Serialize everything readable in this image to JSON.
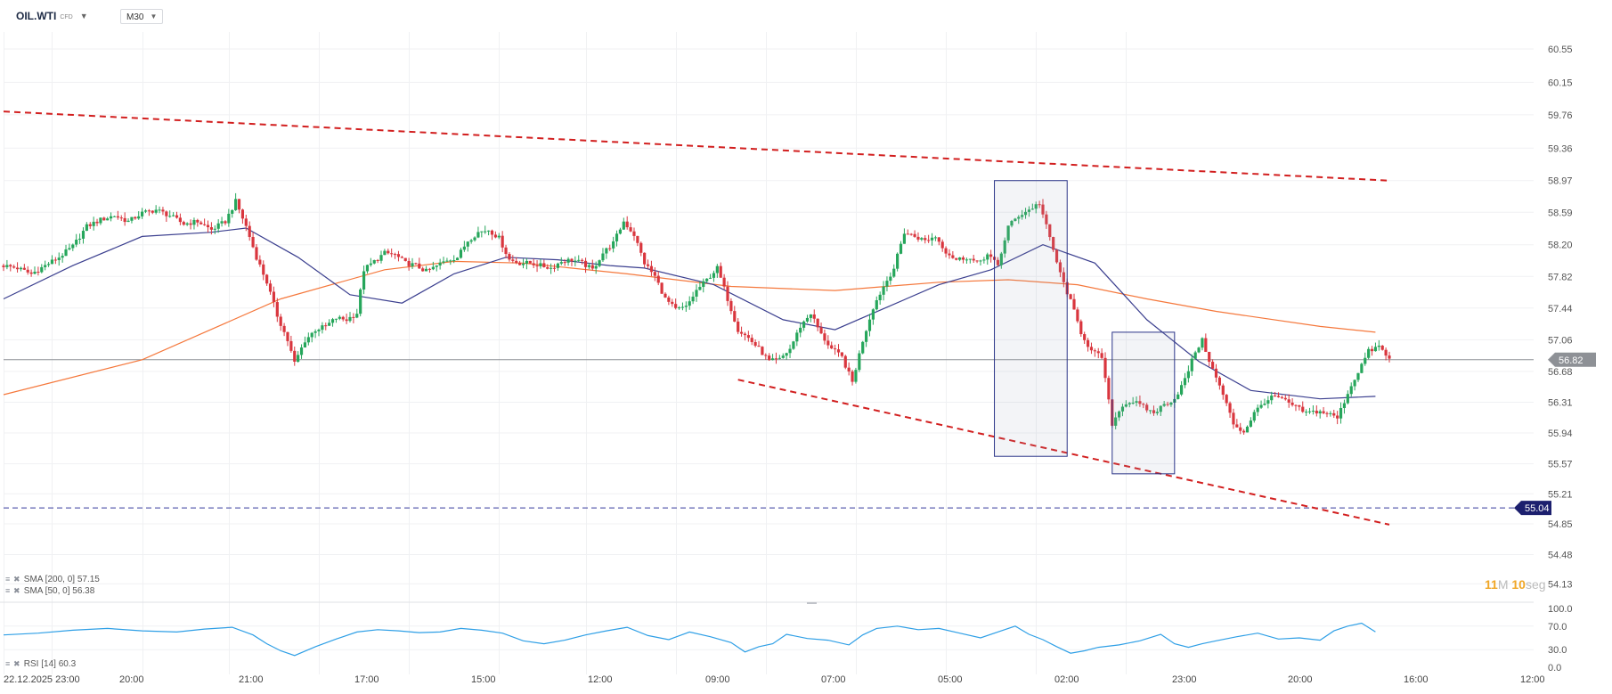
{
  "header": {
    "symbol": "OIL.WTI",
    "symbol_tag": "CFD",
    "timeframe": "M30"
  },
  "legend": {
    "sma200": "SMA [200, 0] 57.15",
    "sma50": "SMA [50, 0] 56.38",
    "rsi": "RSI [14] 60.3"
  },
  "price_badges": {
    "current": "56.82",
    "horizontal_level": "55.04"
  },
  "countdown": {
    "minutes": "11",
    "minutes_unit": "M",
    "seconds": "10",
    "seconds_unit": "seg"
  },
  "colors": {
    "up": "#26a65b",
    "down": "#d9363e",
    "sma200": "#f5783c",
    "sma50": "#3b3f8f",
    "rsi": "#2e9fe6",
    "trend": "#d21f1f",
    "level": "#353a9c",
    "current_line": "#8e9196",
    "box": "#2b3488",
    "grid": "#f0f1f3"
  },
  "chart_data": [
    {
      "type": "candlestick",
      "title": "OIL.WTI",
      "timeframe": "M30",
      "y_ticks": [
        "60.55",
        "60.15",
        "59.76",
        "59.36",
        "58.97",
        "58.59",
        "58.20",
        "57.82",
        "57.44",
        "57.06",
        "56.68",
        "56.31",
        "55.94",
        "55.57",
        "55.21",
        "54.85",
        "54.48",
        "54.13"
      ],
      "ylim": [
        54.13,
        60.75
      ],
      "x_ticks": [
        "22.12.2025 23:00",
        "20:00",
        "21:00",
        "17:00",
        "15:00",
        "12:00",
        "09:00",
        "07:00",
        "05:00",
        "02:00",
        "23:00",
        "20:00",
        "16:00",
        "12:00"
      ],
      "grid": true,
      "anchors": [
        [
          0,
          57.95
        ],
        [
          4,
          57.92
        ],
        [
          8,
          57.85
        ],
        [
          12,
          57.95
        ],
        [
          16,
          58.05
        ],
        [
          20,
          58.18
        ],
        [
          24,
          58.42
        ],
        [
          28,
          58.5
        ],
        [
          32,
          58.55
        ],
        [
          36,
          58.48
        ],
        [
          40,
          58.58
        ],
        [
          44,
          58.62
        ],
        [
          48,
          58.55
        ],
        [
          52,
          58.45
        ],
        [
          56,
          58.48
        ],
        [
          60,
          58.38
        ],
        [
          64,
          58.48
        ],
        [
          67,
          58.72
        ],
        [
          70,
          58.42
        ],
        [
          73,
          58.05
        ],
        [
          76,
          57.75
        ],
        [
          79,
          57.35
        ],
        [
          82,
          57.05
        ],
        [
          84,
          56.78
        ],
        [
          87,
          57.05
        ],
        [
          90,
          57.18
        ],
        [
          93,
          57.22
        ],
        [
          96,
          57.32
        ],
        [
          99,
          57.3
        ],
        [
          102,
          57.38
        ],
        [
          104,
          57.9
        ],
        [
          107,
          58.0
        ],
        [
          110,
          58.1
        ],
        [
          113,
          58.08
        ],
        [
          116,
          57.98
        ],
        [
          119,
          57.95
        ],
        [
          122,
          57.88
        ],
        [
          124,
          57.92
        ],
        [
          128,
          58.02
        ],
        [
          131,
          58.05
        ],
        [
          134,
          58.25
        ],
        [
          137,
          58.35
        ],
        [
          140,
          58.38
        ],
        [
          143,
          58.28
        ],
        [
          146,
          58.02
        ],
        [
          149,
          57.98
        ],
        [
          152,
          57.98
        ],
        [
          155,
          57.95
        ],
        [
          158,
          57.92
        ],
        [
          161,
          58.0
        ],
        [
          164,
          58.02
        ],
        [
          167,
          57.98
        ],
        [
          170,
          57.9
        ],
        [
          173,
          58.1
        ],
        [
          176,
          58.22
        ],
        [
          179,
          58.48
        ],
        [
          182,
          58.32
        ],
        [
          185,
          57.98
        ],
        [
          188,
          57.82
        ],
        [
          191,
          57.55
        ],
        [
          194,
          57.42
        ],
        [
          197,
          57.45
        ],
        [
          200,
          57.65
        ],
        [
          203,
          57.78
        ],
        [
          206,
          57.92
        ],
        [
          209,
          57.55
        ],
        [
          212,
          57.18
        ],
        [
          215,
          57.08
        ],
        [
          218,
          56.95
        ],
        [
          221,
          56.8
        ],
        [
          224,
          56.82
        ],
        [
          227,
          56.95
        ],
        [
          230,
          57.22
        ],
        [
          233,
          57.38
        ],
        [
          236,
          57.12
        ],
        [
          239,
          56.95
        ],
        [
          242,
          56.85
        ],
        [
          245,
          56.55
        ],
        [
          248,
          57.05
        ],
        [
          251,
          57.45
        ],
        [
          254,
          57.7
        ],
        [
          257,
          57.92
        ],
        [
          260,
          58.35
        ],
        [
          263,
          58.3
        ],
        [
          266,
          58.25
        ],
        [
          269,
          58.3
        ],
        [
          272,
          58.12
        ],
        [
          275,
          58.02
        ],
        [
          278,
          58.05
        ],
        [
          281,
          57.98
        ],
        [
          284,
          58.08
        ],
        [
          287,
          57.95
        ],
        [
          290,
          58.42
        ],
        [
          293,
          58.55
        ],
        [
          296,
          58.62
        ],
        [
          299,
          58.7
        ],
        [
          302,
          58.28
        ],
        [
          305,
          57.85
        ],
        [
          308,
          57.52
        ],
        [
          311,
          57.15
        ],
        [
          314,
          56.92
        ],
        [
          317,
          56.85
        ],
        [
          320,
          56.05
        ],
        [
          323,
          56.28
        ],
        [
          326,
          56.32
        ],
        [
          329,
          56.25
        ],
        [
          332,
          56.18
        ],
        [
          335,
          56.28
        ],
        [
          338,
          56.35
        ],
        [
          341,
          56.58
        ],
        [
          344,
          56.92
        ],
        [
          346,
          57.05
        ],
        [
          349,
          56.7
        ],
        [
          352,
          56.4
        ],
        [
          355,
          56.05
        ],
        [
          358,
          55.95
        ],
        [
          361,
          56.18
        ],
        [
          364,
          56.32
        ],
        [
          367,
          56.38
        ],
        [
          370,
          56.32
        ],
        [
          373,
          56.25
        ],
        [
          376,
          56.18
        ],
        [
          379,
          56.2
        ],
        [
          382,
          56.18
        ],
        [
          385,
          56.12
        ],
        [
          388,
          56.42
        ],
        [
          391,
          56.68
        ],
        [
          394,
          56.92
        ],
        [
          397,
          56.98
        ],
        [
          400,
          56.82
        ]
      ],
      "sma200": [
        [
          0,
          56.4
        ],
        [
          40,
          56.82
        ],
        [
          80,
          57.55
        ],
        [
          110,
          57.9
        ],
        [
          130,
          58.0
        ],
        [
          150,
          57.98
        ],
        [
          180,
          57.85
        ],
        [
          210,
          57.7
        ],
        [
          240,
          57.65
        ],
        [
          270,
          57.75
        ],
        [
          290,
          57.78
        ],
        [
          310,
          57.72
        ],
        [
          330,
          57.55
        ],
        [
          350,
          57.4
        ],
        [
          380,
          57.22
        ],
        [
          396,
          57.15
        ]
      ],
      "sma50": [
        [
          0,
          57.55
        ],
        [
          20,
          57.95
        ],
        [
          40,
          58.3
        ],
        [
          60,
          58.35
        ],
        [
          70,
          58.4
        ],
        [
          85,
          58.05
        ],
        [
          100,
          57.6
        ],
        [
          115,
          57.5
        ],
        [
          130,
          57.85
        ],
        [
          145,
          58.05
        ],
        [
          160,
          58.02
        ],
        [
          175,
          57.95
        ],
        [
          185,
          57.92
        ],
        [
          205,
          57.72
        ],
        [
          225,
          57.3
        ],
        [
          240,
          57.18
        ],
        [
          255,
          57.45
        ],
        [
          270,
          57.72
        ],
        [
          285,
          57.9
        ],
        [
          300,
          58.2
        ],
        [
          315,
          57.98
        ],
        [
          330,
          57.3
        ],
        [
          345,
          56.8
        ],
        [
          360,
          56.45
        ],
        [
          380,
          56.35
        ],
        [
          396,
          56.38
        ]
      ],
      "trendlines": [
        {
          "from": [
            0,
            59.8
          ],
          "to": [
            400,
            58.97
          ]
        },
        {
          "from": [
            212,
            56.58
          ],
          "to": [
            400,
            54.84
          ]
        }
      ],
      "horizontal_level": 55.04,
      "current_price": 56.82,
      "boxes": [
        {
          "from": [
            286,
            58.97
          ],
          "to": [
            307,
            55.66
          ]
        },
        {
          "from": [
            320,
            57.15
          ],
          "to": [
            338,
            55.45
          ]
        }
      ]
    },
    {
      "type": "line",
      "title": "RSI [14]",
      "y_ticks": [
        "100.0",
        "70.0",
        "30.0",
        "0.0"
      ],
      "ylim": [
        0,
        100
      ],
      "levels": [
        70,
        30
      ],
      "values": [
        [
          0,
          55
        ],
        [
          10,
          58
        ],
        [
          20,
          63
        ],
        [
          30,
          66
        ],
        [
          40,
          62
        ],
        [
          50,
          60
        ],
        [
          58,
          65
        ],
        [
          66,
          68
        ],
        [
          72,
          55
        ],
        [
          76,
          40
        ],
        [
          80,
          28
        ],
        [
          84,
          20
        ],
        [
          90,
          35
        ],
        [
          96,
          48
        ],
        [
          102,
          60
        ],
        [
          108,
          64
        ],
        [
          114,
          62
        ],
        [
          120,
          59
        ],
        [
          126,
          60
        ],
        [
          132,
          66
        ],
        [
          138,
          63
        ],
        [
          144,
          58
        ],
        [
          150,
          45
        ],
        [
          156,
          40
        ],
        [
          162,
          46
        ],
        [
          168,
          55
        ],
        [
          174,
          62
        ],
        [
          180,
          68
        ],
        [
          186,
          54
        ],
        [
          192,
          47
        ],
        [
          198,
          60
        ],
        [
          204,
          52
        ],
        [
          210,
          42
        ],
        [
          214,
          26
        ],
        [
          218,
          35
        ],
        [
          222,
          40
        ],
        [
          226,
          56
        ],
        [
          232,
          49
        ],
        [
          238,
          46
        ],
        [
          244,
          38
        ],
        [
          248,
          55
        ],
        [
          252,
          66
        ],
        [
          258,
          70
        ],
        [
          264,
          64
        ],
        [
          270,
          66
        ],
        [
          276,
          58
        ],
        [
          282,
          50
        ],
        [
          288,
          62
        ],
        [
          292,
          70
        ],
        [
          296,
          56
        ],
        [
          300,
          47
        ],
        [
          304,
          35
        ],
        [
          308,
          24
        ],
        [
          312,
          28
        ],
        [
          316,
          34
        ],
        [
          322,
          38
        ],
        [
          328,
          45
        ],
        [
          334,
          56
        ],
        [
          338,
          40
        ],
        [
          342,
          34
        ],
        [
          346,
          40
        ],
        [
          350,
          45
        ],
        [
          356,
          52
        ],
        [
          362,
          58
        ],
        [
          368,
          48
        ],
        [
          374,
          50
        ],
        [
          380,
          46
        ],
        [
          384,
          62
        ],
        [
          388,
          70
        ],
        [
          392,
          75
        ],
        [
          396,
          60.3
        ]
      ]
    }
  ]
}
